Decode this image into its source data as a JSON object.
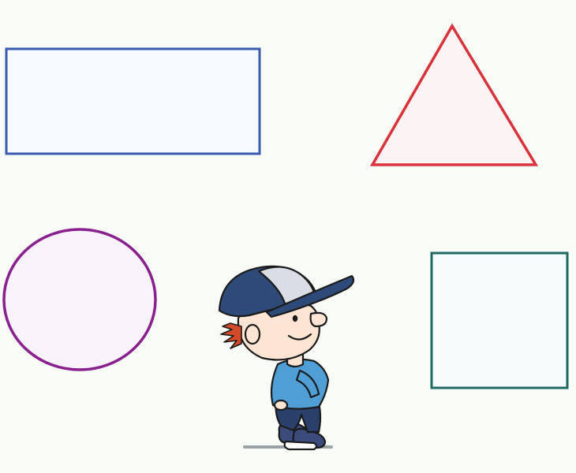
{
  "scene": {
    "background": "#f8fbf6",
    "shapes": [
      {
        "name": "rectangle",
        "stroke": "#3a5bb0",
        "fill": "#f6f9ff"
      },
      {
        "name": "triangle",
        "stroke": "#d8333b",
        "fill": "#fcf3f5"
      },
      {
        "name": "circle",
        "stroke": "#8a1f8e",
        "fill": "#f8f3fb"
      },
      {
        "name": "square",
        "stroke": "#1d6a62",
        "fill": "#f5fbfb"
      }
    ],
    "character": {
      "name": "boy-in-cap",
      "colors": {
        "cap": "#2e4a78",
        "cap_front": "#d9dee6",
        "shirt": "#4f9fd6",
        "pants": "#2b3f6b",
        "hair": "#d24a2a",
        "skin": "#fde4d3",
        "shoes": "#3a4b7c"
      }
    }
  }
}
